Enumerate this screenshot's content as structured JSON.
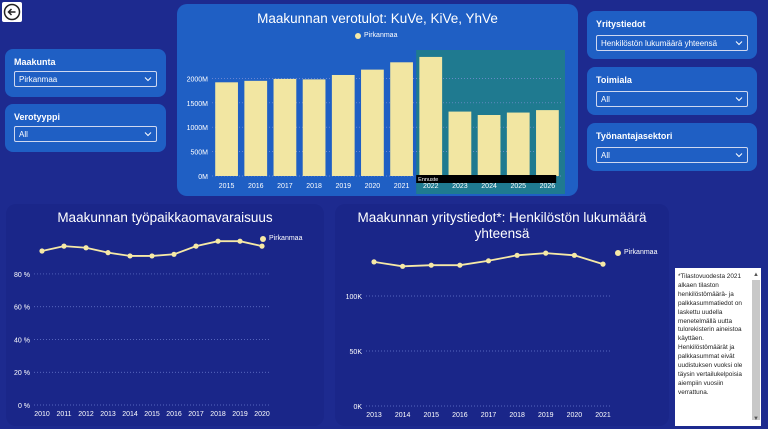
{
  "back_button": {
    "icon": "back-arrow-icon"
  },
  "filters_left": [
    {
      "label": "Maakunta",
      "value": "Pirkanmaa"
    },
    {
      "label": "Verotyyppi",
      "value": "All"
    }
  ],
  "filters_right": [
    {
      "label": "Yritystiedot",
      "value": "Henkilöstön lukumäärä yhteensä"
    },
    {
      "label": "Toimiala",
      "value": "All"
    },
    {
      "label": "Työnantajasektori",
      "value": "All"
    }
  ],
  "colors": {
    "bar": "#f2e6a2",
    "line": "#f6e9a6",
    "forecast_highlight": "#1f7a90"
  },
  "chart_data": [
    {
      "type": "bar",
      "title": "Maakunnan verotulot: KuVe, KiVe, YhVe",
      "legend": [
        "Pirkanmaa"
      ],
      "categories": [
        "2015",
        "2016",
        "2017",
        "2018",
        "2019",
        "2020",
        "2021",
        "2022",
        "2023",
        "2024",
        "2025",
        "2026"
      ],
      "series": [
        {
          "name": "Pirkanmaa",
          "values": [
            1920,
            1950,
            1990,
            1980,
            2070,
            2180,
            2330,
            2440,
            1320,
            1250,
            1300,
            1350
          ]
        }
      ],
      "yticks": [
        "0M",
        "500M",
        "1000M",
        "1500M",
        "2000M"
      ],
      "ylim": [
        0,
        2500
      ],
      "forecast_label": "Ennuste",
      "forecast_from": "2022"
    },
    {
      "type": "line",
      "title": "Maakunnan työpaikkaomavaraisuus",
      "legend": [
        "Pirkanmaa"
      ],
      "x": [
        "2010",
        "2011",
        "2012",
        "2013",
        "2014",
        "2015",
        "2016",
        "2017",
        "2018",
        "2019",
        "2020"
      ],
      "series": [
        {
          "name": "Pirkanmaa",
          "values": [
            94,
            97,
            96,
            93,
            91,
            91,
            92,
            97,
            100,
            100,
            97
          ]
        }
      ],
      "yticks": [
        "0 %",
        "20 %",
        "40 %",
        "60 %",
        "80 %"
      ],
      "ylim": [
        0,
        105
      ]
    },
    {
      "type": "line",
      "title": "Maakunnan yritystiedot*: Henkilöstön lukumäärä yhteensä",
      "legend": [
        "Pirkanmaa"
      ],
      "x": [
        "2013",
        "2014",
        "2015",
        "2016",
        "2017",
        "2018",
        "2019",
        "2020",
        "2021"
      ],
      "series": [
        {
          "name": "Pirkanmaa",
          "values": [
            131000,
            127000,
            128000,
            128000,
            132000,
            137000,
            139000,
            137000,
            129000
          ]
        }
      ],
      "yticks": [
        "0K",
        "50K",
        "100K"
      ],
      "ylim": [
        0,
        150000
      ]
    }
  ],
  "note_text": "*Tilastovuodesta 2021 alkaen tilaston henkilöstömäärä- ja palkkasummatiedot on laskettu uudella menetelmällä uutta tulorekisterin aineistoa käyttäen. Henkilöstömäärät ja palkkasummat eivät uudistuksen vuoksi ole täysin vertailukelpoisia aiempiin vuosiin verrattuna."
}
